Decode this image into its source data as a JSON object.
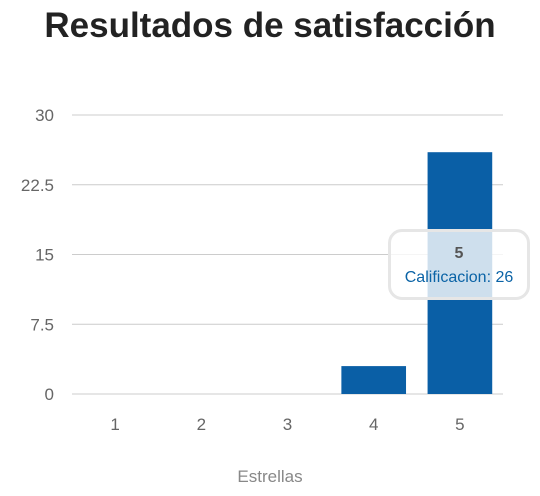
{
  "chart_data": {
    "type": "bar",
    "title": "Resultados de satisfacción",
    "xlabel": "Estrellas",
    "ylabel": "",
    "categories": [
      "1",
      "2",
      "3",
      "4",
      "5"
    ],
    "series": [
      {
        "name": "Calificacion",
        "values": [
          0,
          0,
          0,
          3,
          26
        ]
      }
    ],
    "ylim": [
      0,
      30
    ],
    "yticks": [
      "0",
      "7.5",
      "15",
      "22.5",
      "30"
    ],
    "grid": true,
    "legend": "none",
    "bar_color": "#0a5fa6"
  },
  "tooltip": {
    "category": "5",
    "text": "Calificacion: 26"
  }
}
